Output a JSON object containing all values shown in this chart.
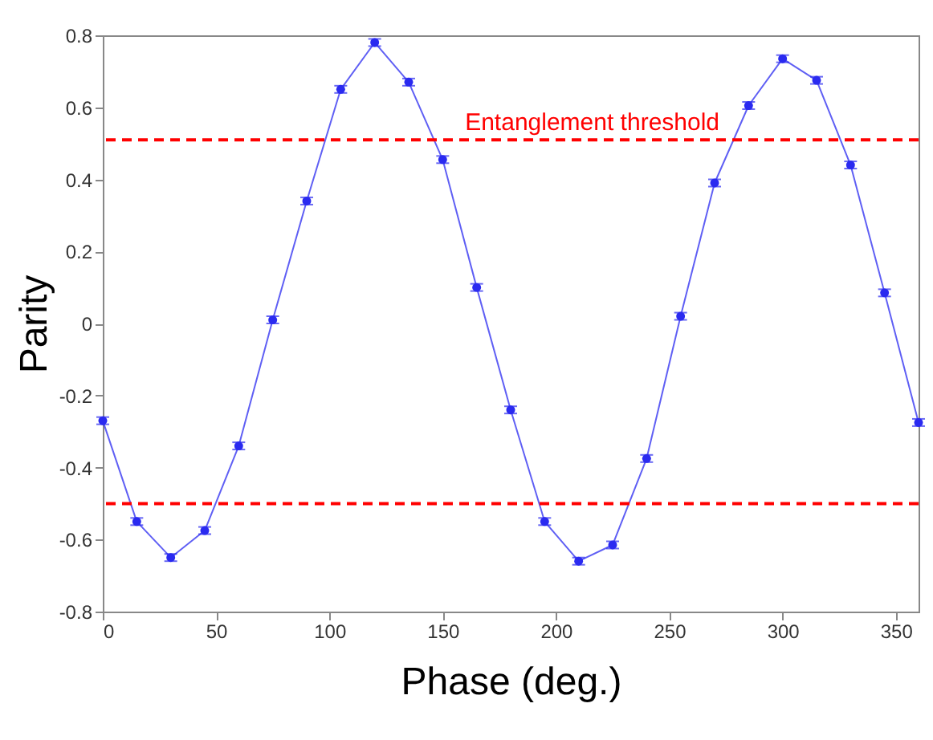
{
  "chart_data": {
    "type": "line",
    "xlabel": "Phase (deg.)",
    "ylabel": "Parity",
    "x": [
      0,
      15,
      30,
      45,
      60,
      75,
      90,
      105,
      120,
      135,
      150,
      165,
      180,
      195,
      210,
      225,
      240,
      255,
      270,
      285,
      300,
      315,
      330,
      345,
      360
    ],
    "series": [
      {
        "color": "#2a2af0",
        "values": [
          -0.27,
          -0.55,
          -0.65,
          -0.575,
          -0.34,
          0.01,
          0.34,
          0.65,
          0.78,
          0.67,
          0.455,
          0.1,
          -0.24,
          -0.55,
          -0.66,
          -0.615,
          -0.375,
          0.02,
          0.39,
          0.605,
          0.735,
          0.675,
          0.44,
          0.085,
          -0.275
        ],
        "errors": [
          0.01,
          0.01,
          0.01,
          0.01,
          0.01,
          0.01,
          0.01,
          0.01,
          0.01,
          0.01,
          0.01,
          0.01,
          0.01,
          0.01,
          0.01,
          0.01,
          0.01,
          0.01,
          0.01,
          0.01,
          0.01,
          0.01,
          0.01,
          0.01,
          0.01
        ]
      }
    ],
    "xlim": [
      0,
      360
    ],
    "xticks": [
      0,
      50,
      100,
      150,
      200,
      250,
      300,
      350
    ],
    "ylim": [
      -0.8,
      0.8
    ],
    "yticks": [
      {
        "value": -0.8,
        "label": "-0.8"
      },
      {
        "value": -0.6,
        "label": "-0.6"
      },
      {
        "value": -0.4,
        "label": "-0.4"
      },
      {
        "value": -0.2,
        "label": "-0.2"
      },
      0,
      0.2,
      0.4,
      0.6,
      0.8
    ],
    "marker": "circle",
    "line_style": "solid",
    "ref_lines": [
      {
        "axis": "y",
        "value": 0.51,
        "label": "Entanglement threshold",
        "color": "#ff0000",
        "line_style": "dashed"
      },
      {
        "axis": "y",
        "value": -0.5,
        "color": "#ff0000",
        "line_style": "dashed"
      }
    ]
  }
}
